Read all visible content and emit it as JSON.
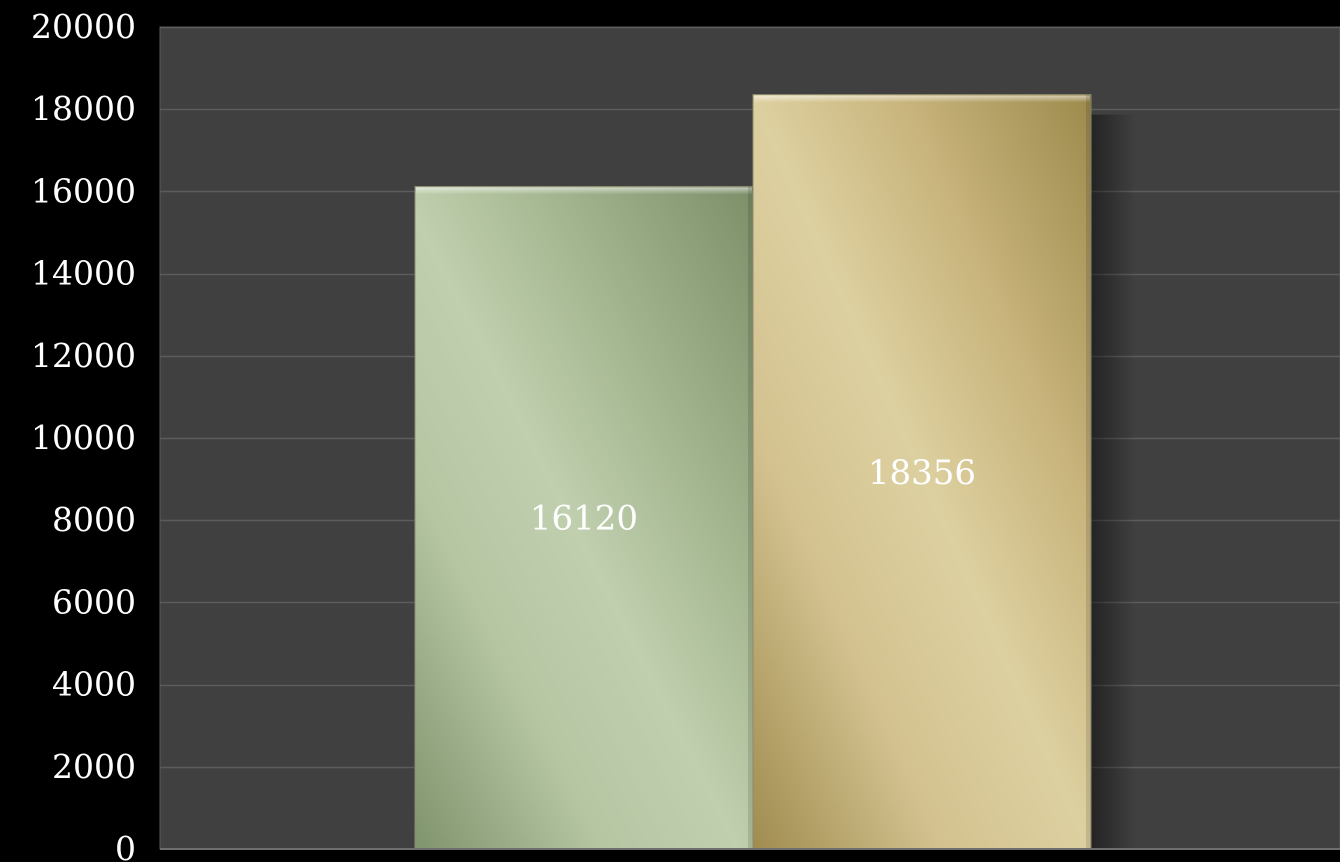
{
  "chart_data": {
    "type": "bar",
    "title": "",
    "xlabel": "",
    "ylabel": "",
    "categories": [
      ""
    ],
    "series": [
      {
        "values": [
          16120
        ],
        "color": "#a9bb95"
      },
      {
        "values": [
          18356
        ],
        "color": "#d2c38d"
      }
    ],
    "data_labels": [
      "16120",
      "18356"
    ],
    "ylim": [
      0,
      20000
    ],
    "yticks": [
      0,
      2000,
      4000,
      6000,
      8000,
      10000,
      12000,
      14000,
      16000,
      18000,
      20000
    ],
    "ytick_labels": [
      "0",
      "2000",
      "4000",
      "6000",
      "8000",
      "10000",
      "12000",
      "14000",
      "16000",
      "18000",
      "20000"
    ],
    "grid": true,
    "legend": "none"
  },
  "colors": {
    "page_background": "#000000",
    "plot_background": "#404040",
    "gridline": "#5c5c5c",
    "text": "#ffffff"
  }
}
